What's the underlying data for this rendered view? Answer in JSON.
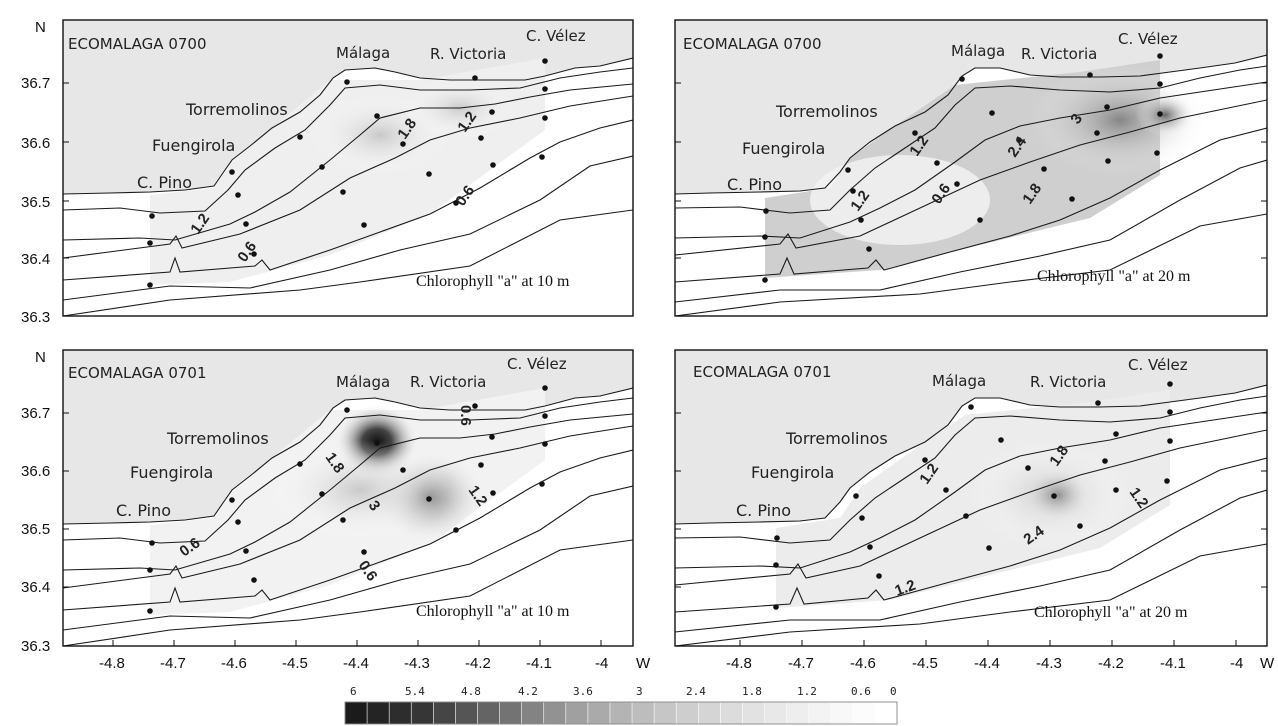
{
  "colors": {
    "land": "#e7e7e7",
    "frame": "#111111",
    "contour": "#1a1a1a"
  },
  "axes": {
    "north_label": "N",
    "west_label": "W",
    "lat_ticks": [
      "36.7",
      "36.6",
      "36.5",
      "36.4",
      "36.3"
    ],
    "lon_ticks": [
      "-4.8",
      "-4.7",
      "-4.6",
      "-4.5",
      "-4.4",
      "-4.3",
      "-4.2",
      "-4.1",
      "-4"
    ]
  },
  "panels": [
    {
      "id": "p1",
      "campaign": "ECOMALAGA 0700",
      "caption": "Chlorophyll \"a\" at 10 m",
      "places": [
        "Málaga",
        "R. Victoria",
        "C. Vélez",
        "Torremolinos",
        "Fuengirola",
        "C. Pino"
      ],
      "contours": [
        "1.8",
        "1.2",
        "0.6",
        "1.2",
        "0.6"
      ]
    },
    {
      "id": "p2",
      "campaign": "ECOMALAGA 0700",
      "caption": "Chlorophyll \"a\" at 20 m",
      "places": [
        "Málaga",
        "R. Victoria",
        "C. Vélez",
        "Torremolinos",
        "Fuengirola",
        "C. Pino"
      ],
      "contours": [
        "1.2",
        "2.4",
        "3",
        "1.2",
        "0.6",
        "1.8"
      ]
    },
    {
      "id": "p3",
      "campaign": "ECOMALAGA 0701",
      "caption": "Chlorophyll \"a\" at 10 m",
      "places": [
        "Málaga",
        "R. Victoria",
        "C. Vélez",
        "Torremolinos",
        "Fuengirola",
        "C. Pino"
      ],
      "contours": [
        "0.6",
        "1.8",
        "0.6",
        "3",
        "1.2",
        "0.6"
      ]
    },
    {
      "id": "p4",
      "campaign": "ECOMALAGA 0701",
      "caption": "Chlorophyll \"a\" at 20 m",
      "places": [
        "Málaga",
        "R. Victoria",
        "C. Vélez",
        "Torremolinos",
        "Fuengirola",
        "C. Pino"
      ],
      "contours": [
        "1.2",
        "1.8",
        "1.2",
        "2.4",
        "1.2"
      ]
    }
  ],
  "colorbar": {
    "labels": [
      "6",
      "5.4",
      "4.8",
      "4.2",
      "3.6",
      "3",
      "2.4",
      "1.8",
      "1.2",
      "0.6",
      "0"
    ],
    "steps": [
      "#1b1b1b",
      "#242424",
      "#2d2d2d",
      "#363636",
      "#454545",
      "#555555",
      "#646464",
      "#737373",
      "#838383",
      "#929292",
      "#a0a0a0",
      "#aaaaaa",
      "#b4b4b4",
      "#bdbdbd",
      "#c6c6c6",
      "#cecece",
      "#d5d5d5",
      "#dcdcdc",
      "#e2e2e2",
      "#e8e8e8",
      "#eeeeee",
      "#f3f3f3",
      "#f8f8f8",
      "#fcfcfc",
      "#ffffff"
    ]
  }
}
